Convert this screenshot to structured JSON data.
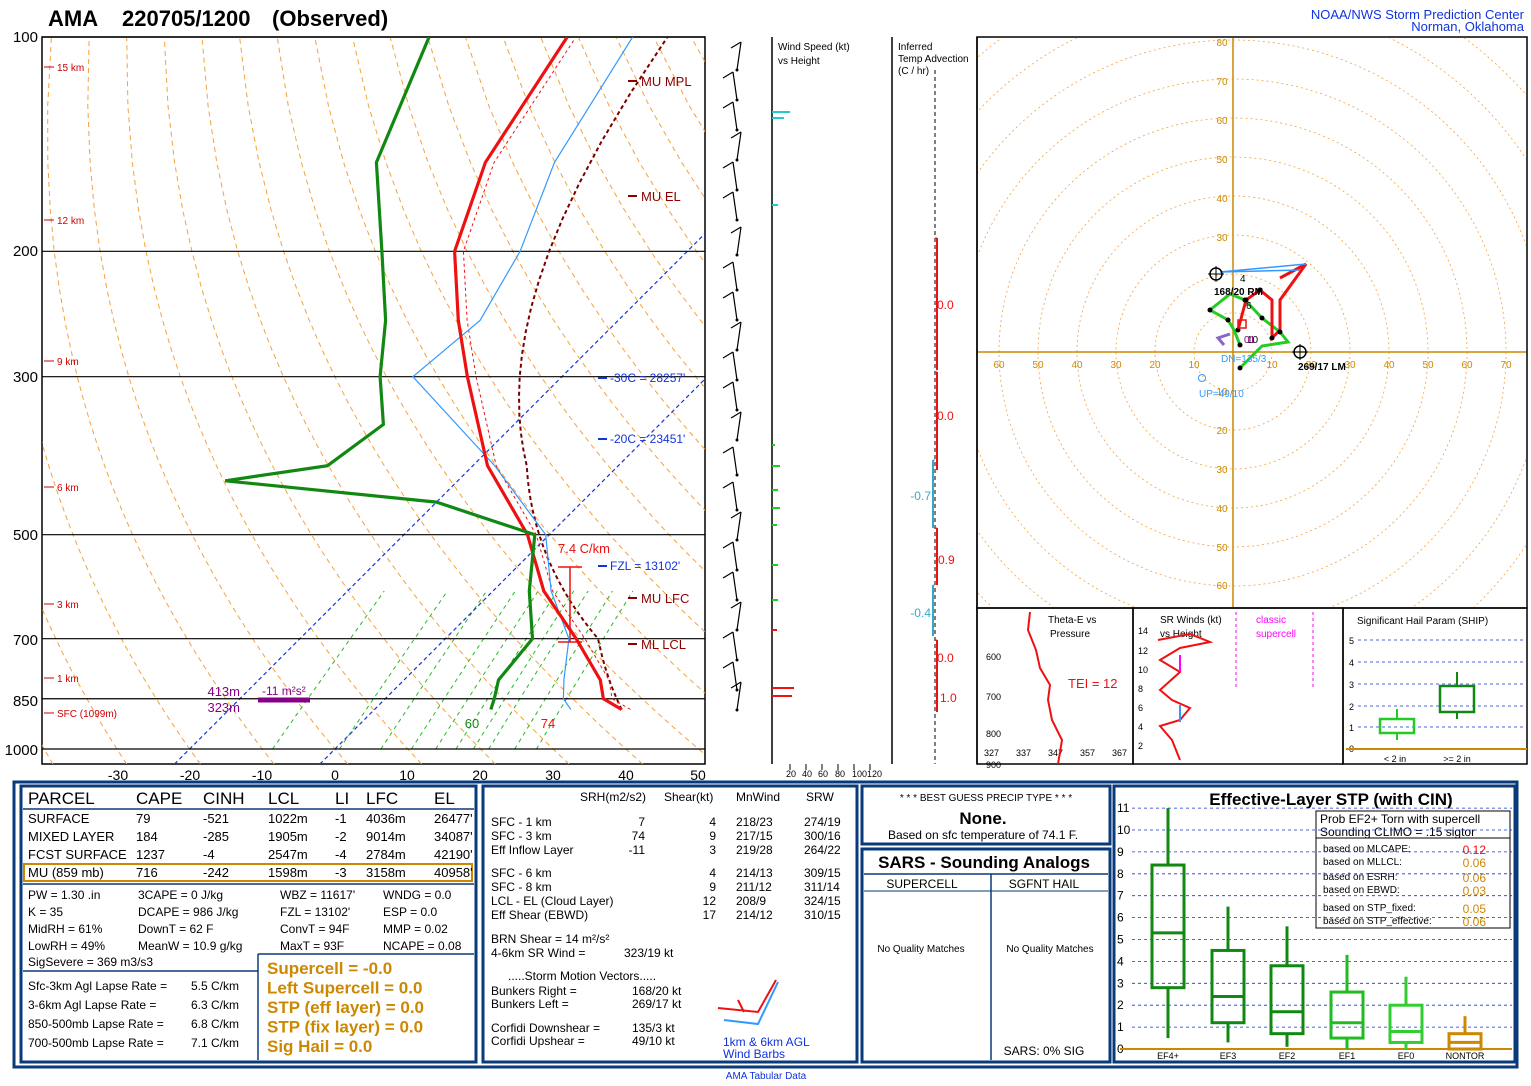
{
  "header": {
    "station": "AMA",
    "datetime": "220705/1200",
    "obs": "(Observed)",
    "org1": "NOAA/NWS Storm Prediction Center",
    "org2": "Norman, Oklahoma",
    "footer": "AMA Tabular Data"
  },
  "colors": {
    "temp": "#ee1111",
    "dew": "#118811",
    "parcel": "#7a0000",
    "dry": "#f4a23c",
    "wetbulb": "#3399ff",
    "isotherm": "#1133dd",
    "accent": "#cc8800",
    "box": "#0a3a7a"
  },
  "chart_data": {
    "type": "line",
    "title": "AMA 220705/1200 (Observed)",
    "pressure_ticks": [
      100,
      200,
      300,
      500,
      700,
      850,
      1000
    ],
    "temp_ticks": [
      -30,
      -20,
      -10,
      0,
      10,
      20,
      30,
      40,
      50
    ],
    "height_labels": [
      "15 km",
      "12 km",
      "9 km",
      "6 km",
      "3 km",
      "1 km",
      "SFC (1099m)"
    ],
    "level_labels": [
      "MU MPL",
      "MU EL",
      "-30C = 28257'",
      "-20C = 23451'",
      "FZL = 13102'",
      "MU LFC",
      "ML LCL"
    ],
    "lapse_label": "7.4 C/km",
    "surface_temp_label": "74",
    "surface_dew_label": "60",
    "srh_depth1": "413m",
    "srh_depth2": "323m",
    "srh_value": "-11 m²s²",
    "series": [
      {
        "name": "temperature",
        "points": [
          [
            880,
            34
          ],
          [
            850,
            30
          ],
          [
            800,
            27
          ],
          [
            700,
            18
          ],
          [
            600,
            7
          ],
          [
            500,
            -3
          ],
          [
            400,
            -18
          ],
          [
            300,
            -33
          ],
          [
            250,
            -42
          ],
          [
            200,
            -52
          ],
          [
            150,
            -60
          ],
          [
            100,
            -66
          ]
        ]
      },
      {
        "name": "dewpoint",
        "points": [
          [
            880,
            16
          ],
          [
            850,
            15
          ],
          [
            800,
            13
          ],
          [
            700,
            12
          ],
          [
            600,
            5
          ],
          [
            500,
            -2
          ],
          [
            450,
            -20
          ],
          [
            420,
            -52
          ],
          [
            400,
            -40
          ],
          [
            350,
            -38
          ],
          [
            300,
            -45
          ],
          [
            250,
            -52
          ],
          [
            200,
            -62
          ],
          [
            150,
            -75
          ],
          [
            100,
            -85
          ]
        ]
      }
    ],
    "wind_panel": {
      "title": "Wind Speed (kt)\nvs Height",
      "ticks": [
        "20",
        "40",
        "60",
        "80",
        "100120"
      ]
    },
    "inferred_panel": {
      "title": "Inferred\nTemp Advection\n(C / hr)",
      "values": [
        "0.0",
        "0.0",
        "-0.7",
        "0.9",
        "-0.4",
        "0.0",
        "1.0"
      ]
    },
    "hodograph": {
      "x_ticks": [
        "60",
        "50",
        "40",
        "30",
        "20",
        "10",
        "10",
        "20",
        "30",
        "40",
        "50",
        "60",
        "70"
      ],
      "y_ticks_up": [
        "80",
        "70",
        "60",
        "50",
        "40",
        "30"
      ],
      "y_ticks_down": [
        "10",
        "20",
        "30",
        "40",
        "50",
        "60"
      ],
      "rm_label": "168/20 RM",
      "lm_label": "269/17 LM",
      "up_label": "UP=49/10",
      "dn_label": "DN=135/3",
      "extra_labels": [
        "6",
        "10",
        "01",
        "4"
      ]
    },
    "theta_panel": {
      "title": "Theta-E vs\nPressure",
      "tei": "TEI = 12",
      "p_ticks": [
        "600",
        "700",
        "800",
        "900"
      ],
      "x_ticks": [
        "327",
        "337",
        "347",
        "357",
        "367"
      ]
    },
    "srw_panel": {
      "title": "SR Winds (kt)\nvs Height",
      "classic": "classic\nsupercell",
      "h_ticks": [
        "14",
        "12",
        "10",
        "8",
        "6",
        "4",
        "2"
      ]
    },
    "ship_panel": {
      "title": "Significant Hail Param (SHIP)",
      "y_ticks": [
        "5",
        "4",
        "3",
        "2",
        "1",
        "0"
      ],
      "categories": [
        "< 2 in",
        ">= 2 in"
      ]
    },
    "stp_panel": {
      "title": "Effective-Layer STP (with CIN)",
      "box_line1": "Prob EF2+ Torn with supercell",
      "box_line2": "Sounding CLIMO = .15 sigtor",
      "probs": [
        [
          "based on MLCAPE:",
          "0.12"
        ],
        [
          "based on MLLCL:",
          "0.06"
        ],
        [
          "based on ESRH:",
          "0.06"
        ],
        [
          "based on EBWD:",
          "0.03"
        ],
        [
          "based on STP_fixed:",
          "0.05"
        ],
        [
          "based on STP_effective:",
          "0.06"
        ]
      ],
      "y_ticks": [
        "11",
        "10",
        "9",
        "8",
        "7",
        "6",
        "5",
        "4",
        "3",
        "2",
        "1",
        "0"
      ],
      "categories": [
        "EF4+",
        "EF3",
        "EF2",
        "EF1",
        "EF0",
        "NONTOR"
      ],
      "boxes": [
        {
          "lo": 0.5,
          "q1": 2.8,
          "med": 5.3,
          "q3": 8.4,
          "hi": 11.0
        },
        {
          "lo": 0.3,
          "q1": 1.2,
          "med": 2.4,
          "q3": 4.5,
          "hi": 6.5
        },
        {
          "lo": 0.1,
          "q1": 0.7,
          "med": 1.7,
          "q3": 3.8,
          "hi": 5.6
        },
        {
          "lo": 0.0,
          "q1": 0.5,
          "med": 1.2,
          "q3": 2.6,
          "hi": 4.3
        },
        {
          "lo": 0.0,
          "q1": 0.3,
          "med": 0.8,
          "q3": 2.0,
          "hi": 3.3
        },
        {
          "lo": 0.0,
          "q1": 0.0,
          "med": 0.3,
          "q3": 0.7,
          "hi": 1.5
        }
      ]
    }
  },
  "parcel_table": {
    "headers": [
      "PARCEL",
      "CAPE",
      "CINH",
      "LCL",
      "LI",
      "LFC",
      "EL"
    ],
    "rows": [
      [
        "SURFACE",
        "79",
        "-521",
        "1022m",
        "-1",
        "4036m",
        "26477'"
      ],
      [
        "MIXED LAYER",
        "184",
        "-285",
        "1905m",
        "-2",
        "9014m",
        "34087'"
      ],
      [
        "FCST SURFACE",
        "1237",
        "-4",
        "2547m",
        "-4",
        "2784m",
        "42190'"
      ],
      [
        "MU  (859 mb)",
        "716",
        "-242",
        "1598m",
        "-3",
        "3158m",
        "40958'"
      ]
    ],
    "indices": [
      [
        "PW = 1.30 .in",
        "3CAPE = 0 J/kg",
        "WBZ = 11617'",
        "WNDG = 0.0"
      ],
      [
        "K = 35",
        "DCAPE = 986 J/kg",
        "FZL = 13102'",
        "ESP = 0.0"
      ],
      [
        "MidRH = 61%",
        "DownT = 62 F",
        "ConvT = 94F",
        "MMP = 0.02"
      ],
      [
        "LowRH = 49%",
        "MeanW = 10.9 g/kg",
        "MaxT = 93F",
        "NCAPE = 0.08"
      ]
    ],
    "sigsevere": "SigSevere = 369 m3/s3",
    "lapse": [
      [
        "Sfc-3km Agl Lapse Rate =",
        "5.5 C/km"
      ],
      [
        "3-6km Agl Lapse Rate =",
        "6.3 C/km"
      ],
      [
        "850-500mb Lapse Rate =",
        "6.8 C/km"
      ],
      [
        "700-500mb Lapse Rate =",
        "7.1 C/km"
      ]
    ],
    "composites": [
      "Supercell = -0.0",
      "Left Supercell = 0.0",
      "STP (eff layer) = 0.0",
      "STP (fix layer) = 0.0",
      "Sig Hail = 0.0"
    ]
  },
  "kinematics": {
    "headers": [
      "SRH(m2/s2)",
      "Shear(kt)",
      "MnWind",
      "SRW"
    ],
    "rows1": [
      [
        "SFC - 1 km",
        "7",
        "4",
        "218/23",
        "274/19"
      ],
      [
        "SFC - 3 km",
        "74",
        "9",
        "217/15",
        "300/16"
      ],
      [
        "Eff Inflow Layer",
        "-11",
        "3",
        "219/28",
        "264/22"
      ]
    ],
    "rows2": [
      [
        "SFC - 6 km",
        "",
        "4",
        "214/13",
        "309/15"
      ],
      [
        "SFC - 8 km",
        "",
        "9",
        "211/12",
        "311/14"
      ],
      [
        "LCL - EL (Cloud Layer)",
        "",
        "12",
        "208/9",
        "324/15"
      ],
      [
        "Eff Shear (EBWD)",
        "",
        "17",
        "214/12",
        "310/15"
      ]
    ],
    "brn": "BRN Shear =  14 m²/s²",
    "srwind": [
      "4-6km SR Wind =",
      "323/19 kt"
    ],
    "storm_title": ".....Storm Motion Vectors.....",
    "storm": [
      [
        "Bunkers Right =",
        "168/20 kt"
      ],
      [
        "Bunkers Left =",
        "269/17 kt"
      ]
    ],
    "corfidi": [
      [
        "Corfidi Downshear =",
        "135/3 kt"
      ],
      [
        "Corfidi Upshear =",
        "49/10 kt"
      ]
    ],
    "barb_label1": "1km & 6km AGL",
    "barb_label2": "Wind Barbs"
  },
  "precip": {
    "title": "* * * BEST GUESS PRECIP TYPE * * *",
    "value": "None.",
    "basis": "Based on sfc temperature of 74.1 F."
  },
  "sars": {
    "title": "SARS - Sounding Analogs",
    "col1": "SUPERCELL",
    "col2": "SGFNT HAIL",
    "msg1": "No Quality Matches",
    "msg2": "No Quality Matches",
    "footer": "SARS:  0% SIG"
  }
}
